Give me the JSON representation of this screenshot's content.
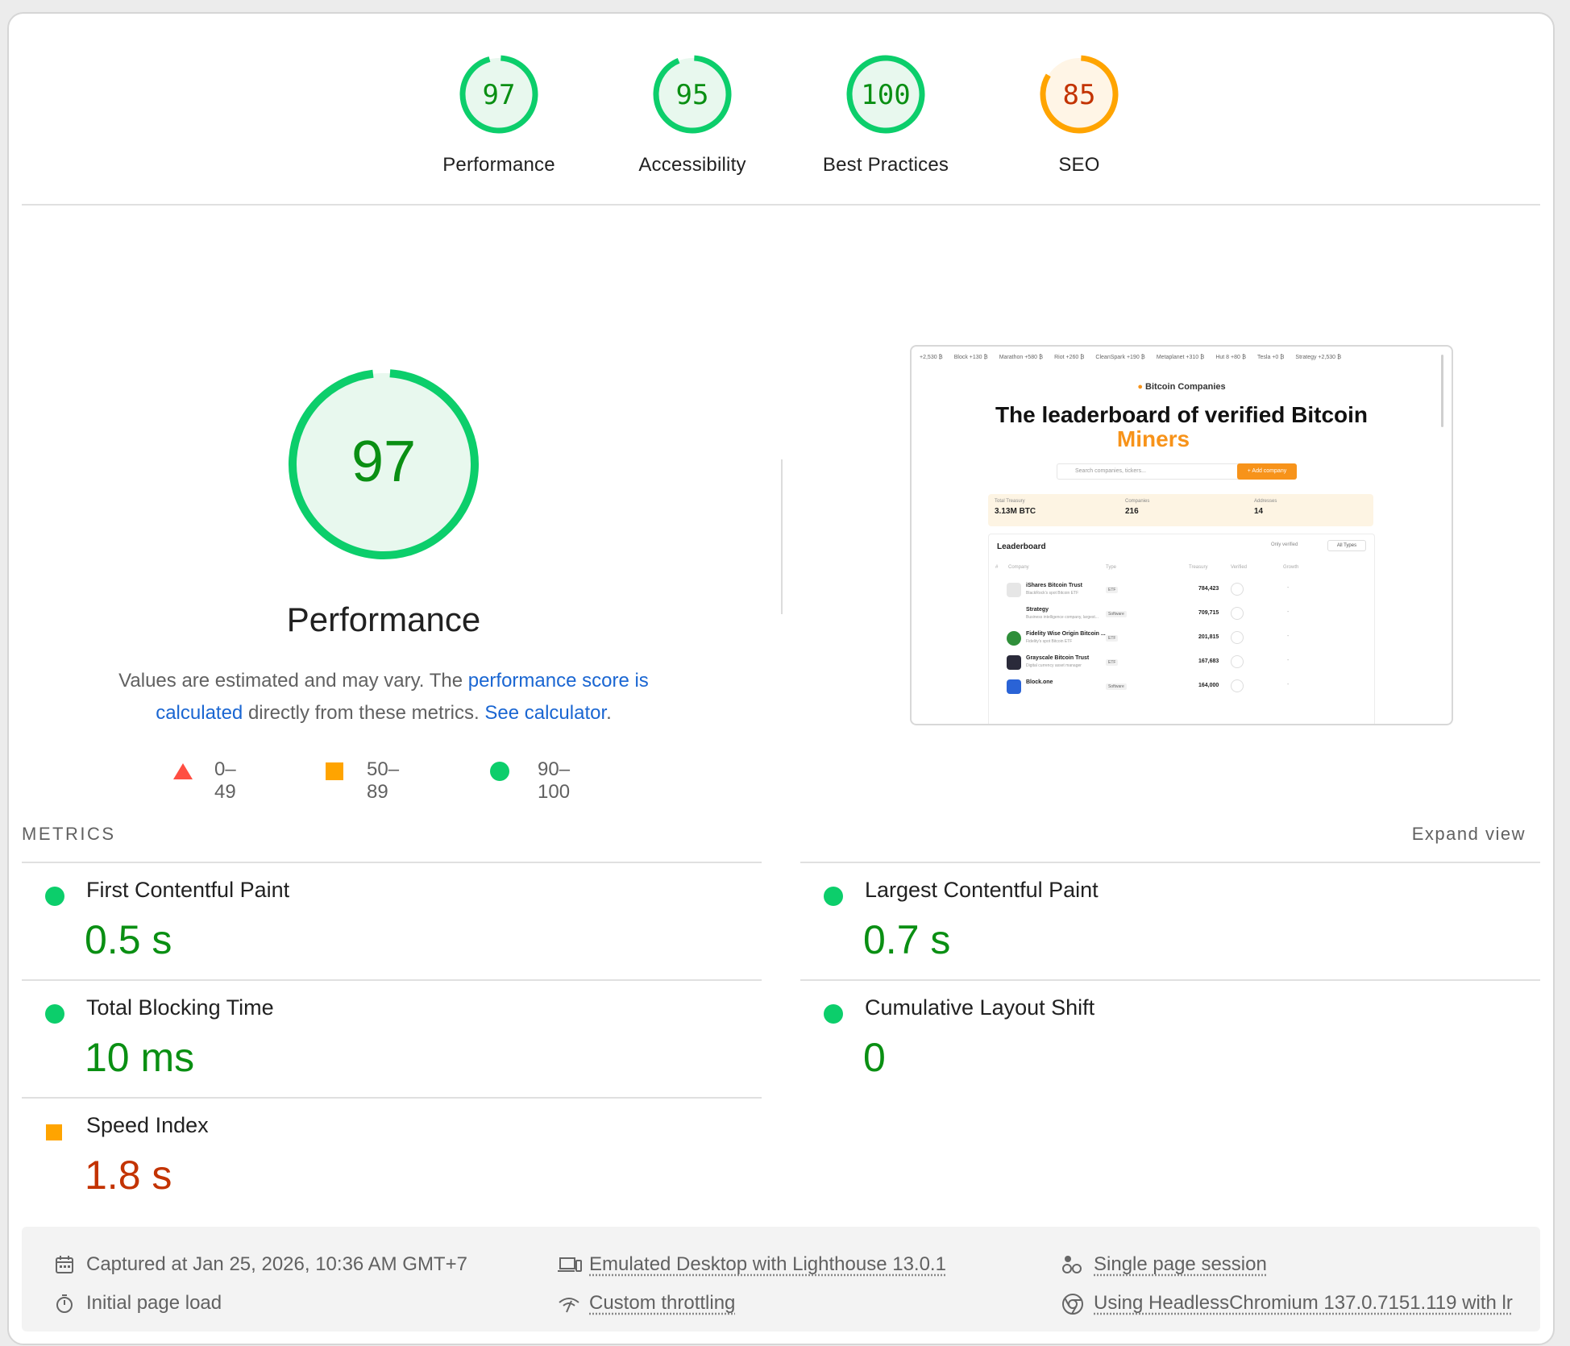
{
  "categories": [
    {
      "score": "97",
      "label": "Performance",
      "score_fraction": 0.97,
      "rating": "pass"
    },
    {
      "score": "95",
      "label": "Accessibility",
      "score_fraction": 0.95,
      "rating": "pass"
    },
    {
      "score": "100",
      "label": "Best Practices",
      "score_fraction": 1.0,
      "rating": "pass"
    },
    {
      "score": "85",
      "label": "SEO",
      "score_fraction": 0.85,
      "rating": "average"
    }
  ],
  "performance": {
    "score": "97",
    "score_fraction": 0.97,
    "title": "Performance",
    "desc_prefix": "Values are estimated and may vary. The ",
    "desc_link1": "performance score is calculated",
    "desc_middle": " directly from these metrics. ",
    "desc_link2": "See calculator",
    "desc_suffix": "."
  },
  "legend": [
    {
      "range": "0–49",
      "shape": "triangle"
    },
    {
      "range": "50–89",
      "shape": "square"
    },
    {
      "range": "90–100",
      "shape": "circle"
    }
  ],
  "metrics": {
    "header": "METRICS",
    "expand": "Expand view",
    "items": [
      {
        "title": "First Contentful Paint",
        "value": "0.5 s",
        "rating": "pass"
      },
      {
        "title": "Largest Contentful Paint",
        "value": "0.7 s",
        "rating": "pass"
      },
      {
        "title": "Total Blocking Time",
        "value": "10 ms",
        "rating": "pass"
      },
      {
        "title": "Cumulative Layout Shift",
        "value": "0",
        "rating": "pass"
      },
      {
        "title": "Speed Index",
        "value": "1.8 s",
        "rating": "average"
      }
    ]
  },
  "footer": {
    "captured": "Captured at Jan 25, 2026, 10:36 AM GMT+7",
    "load": "Initial page load",
    "device": "Emulated Desktop with Lighthouse 13.0.1",
    "throttling": "Custom throttling",
    "session": "Single page session",
    "browser": "Using HeadlessChromium 137.0.7151.119 with lr"
  },
  "screenshot": {
    "ticker": [
      "+2,530 ₿",
      "Block +130 ₿",
      "Marathon +580 ₿",
      "Riot +260 ₿",
      "CleanSpark +190 ₿",
      "Metaplanet +310 ₿",
      "Hut 8 +80 ₿",
      "Tesla +0 ₿",
      "Strategy +2,530 ₿"
    ],
    "badge": "Bitcoin Companies",
    "headline": "The leaderboard of verified Bitcoin",
    "headline_accent": "Miners",
    "search_placeholder": "Search companies, tickers...",
    "add_button": "+ Add company",
    "stats": [
      {
        "label": "Total Treasury",
        "value": "3.13M BTC"
      },
      {
        "label": "Companies",
        "value": "216"
      },
      {
        "label": "Addresses",
        "value": "14"
      }
    ],
    "leaderboard_title": "Leaderboard",
    "only_verified": "Only verified",
    "all_types": "All Types",
    "columns": [
      "#",
      "Company",
      "Type",
      "Treasury",
      "Verified",
      "Growth"
    ],
    "rows": [
      {
        "name": "iShares Bitcoin Trust",
        "sub": "BlackRock's spot Bitcoin ETF",
        "type": "ETF",
        "treasury": "784,423"
      },
      {
        "name": "Strategy",
        "sub": "Business intelligence company, largest...",
        "type": "Software",
        "treasury": "709,715"
      },
      {
        "name": "Fidelity Wise Origin Bitcoin ...",
        "sub": "Fidelity's spot Bitcoin ETF",
        "type": "ETF",
        "treasury": "201,815"
      },
      {
        "name": "Grayscale Bitcoin Trust",
        "sub": "Digital currency asset manager",
        "type": "ETF",
        "treasury": "167,683"
      },
      {
        "name": "Block.one",
        "sub": "",
        "type": "Software",
        "treasury": "164,000"
      }
    ]
  },
  "colors": {
    "pass": "#0cce6b",
    "pass_text": "#0a8f13",
    "pass_bg": "#e8f8ee",
    "average": "#ffa400",
    "average_text": "#c33300",
    "average_bg": "#fff5e6",
    "fail": "#ff4e42",
    "link": "#1a66d2"
  }
}
